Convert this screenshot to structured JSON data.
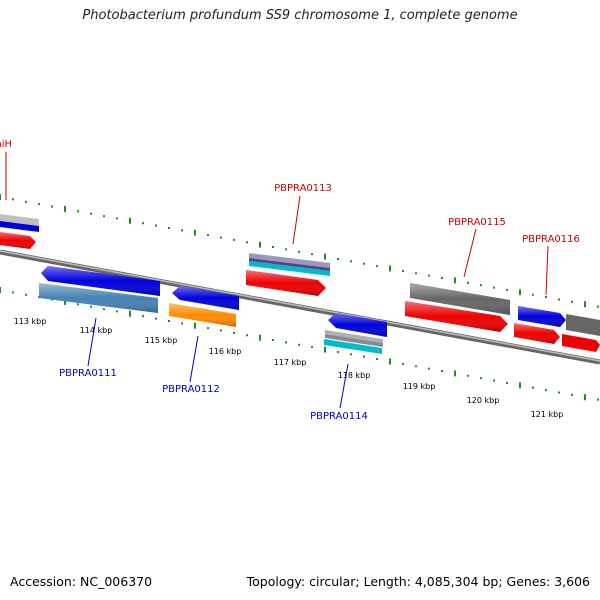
{
  "title": "Photobacterium profundum SS9 chromosome 1, complete genome",
  "footer": {
    "accession": "Accession: NC_006370",
    "summary": "Topology: circular; Length: 4,085,304 bp; Genes: 3,606"
  },
  "colors": {
    "tick_green": "#228b22",
    "label_red": "#cc0000",
    "label_blue": "#0000cc",
    "backbone": "#888888"
  },
  "ruler_labels": [
    {
      "text": "113 kbp",
      "kb": 113
    },
    {
      "text": "114 kbp",
      "kb": 114
    },
    {
      "text": "115 kbp",
      "kb": 115
    },
    {
      "text": "116 kbp",
      "kb": 116
    },
    {
      "text": "117 kbp",
      "kb": 117
    },
    {
      "text": "118 kbp",
      "kb": 118
    },
    {
      "text": "119 kbp",
      "kb": 119
    },
    {
      "text": "120 kbp",
      "kb": 120
    },
    {
      "text": "121 kbp",
      "kb": 121
    }
  ],
  "forward_genes": [
    {
      "name": "thiH",
      "color_top": "#c0c0c0",
      "color_mid": "#0000dd",
      "color_bottom": "#ee0000"
    },
    {
      "name": "PBPRA0113",
      "color_top": "#9999bb",
      "color_mid": "#00bbcc",
      "color_bottom": "#ee0000"
    },
    {
      "name": "PBPRA0115",
      "color_top": "#666666",
      "color_bottom": "#ee0000"
    },
    {
      "name": "PBPRA0116",
      "color_top": "#0000dd",
      "color_bottom": "#ee0000"
    }
  ],
  "reverse_genes": [
    {
      "name": "PBPRA0111",
      "color_top": "#0000dd",
      "color_bottom": "#4682b4"
    },
    {
      "name": "PBPRA0112",
      "color_top": "#0000dd",
      "color_bottom": "#ff8c00"
    },
    {
      "name": "PBPRA0114",
      "color_top": "#0000dd",
      "color_mid": "#b0b0b0",
      "color_bottom": "#00bbcc"
    }
  ]
}
